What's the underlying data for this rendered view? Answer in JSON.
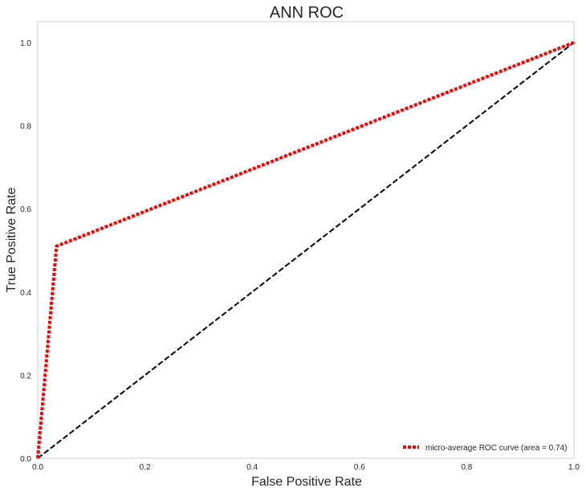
{
  "chart_data": {
    "type": "line",
    "title": "ANN ROC",
    "xlabel": "False Positive Rate",
    "ylabel": "True Positive Rate",
    "xlim": [
      0.0,
      1.0
    ],
    "ylim": [
      0.0,
      1.05
    ],
    "x_ticks": [
      "0.0",
      "0.2",
      "0.4",
      "0.6",
      "0.8",
      "1.0"
    ],
    "y_ticks": [
      "0.0",
      "0.2",
      "0.4",
      "0.6",
      "0.8",
      "1.0"
    ],
    "grid": false,
    "legend_position": "lower-right",
    "series": [
      {
        "name": "micro-average ROC curve (area = 0.74)",
        "x": [
          0.0,
          0.035,
          1.0
        ],
        "y": [
          0.0,
          0.51,
          1.0
        ],
        "color": "#ff0000",
        "style": "dotted"
      },
      {
        "x": [
          0.0,
          1.0
        ],
        "y": [
          0.0,
          1.0
        ],
        "color": "#000000",
        "style": "dashed"
      }
    ]
  }
}
